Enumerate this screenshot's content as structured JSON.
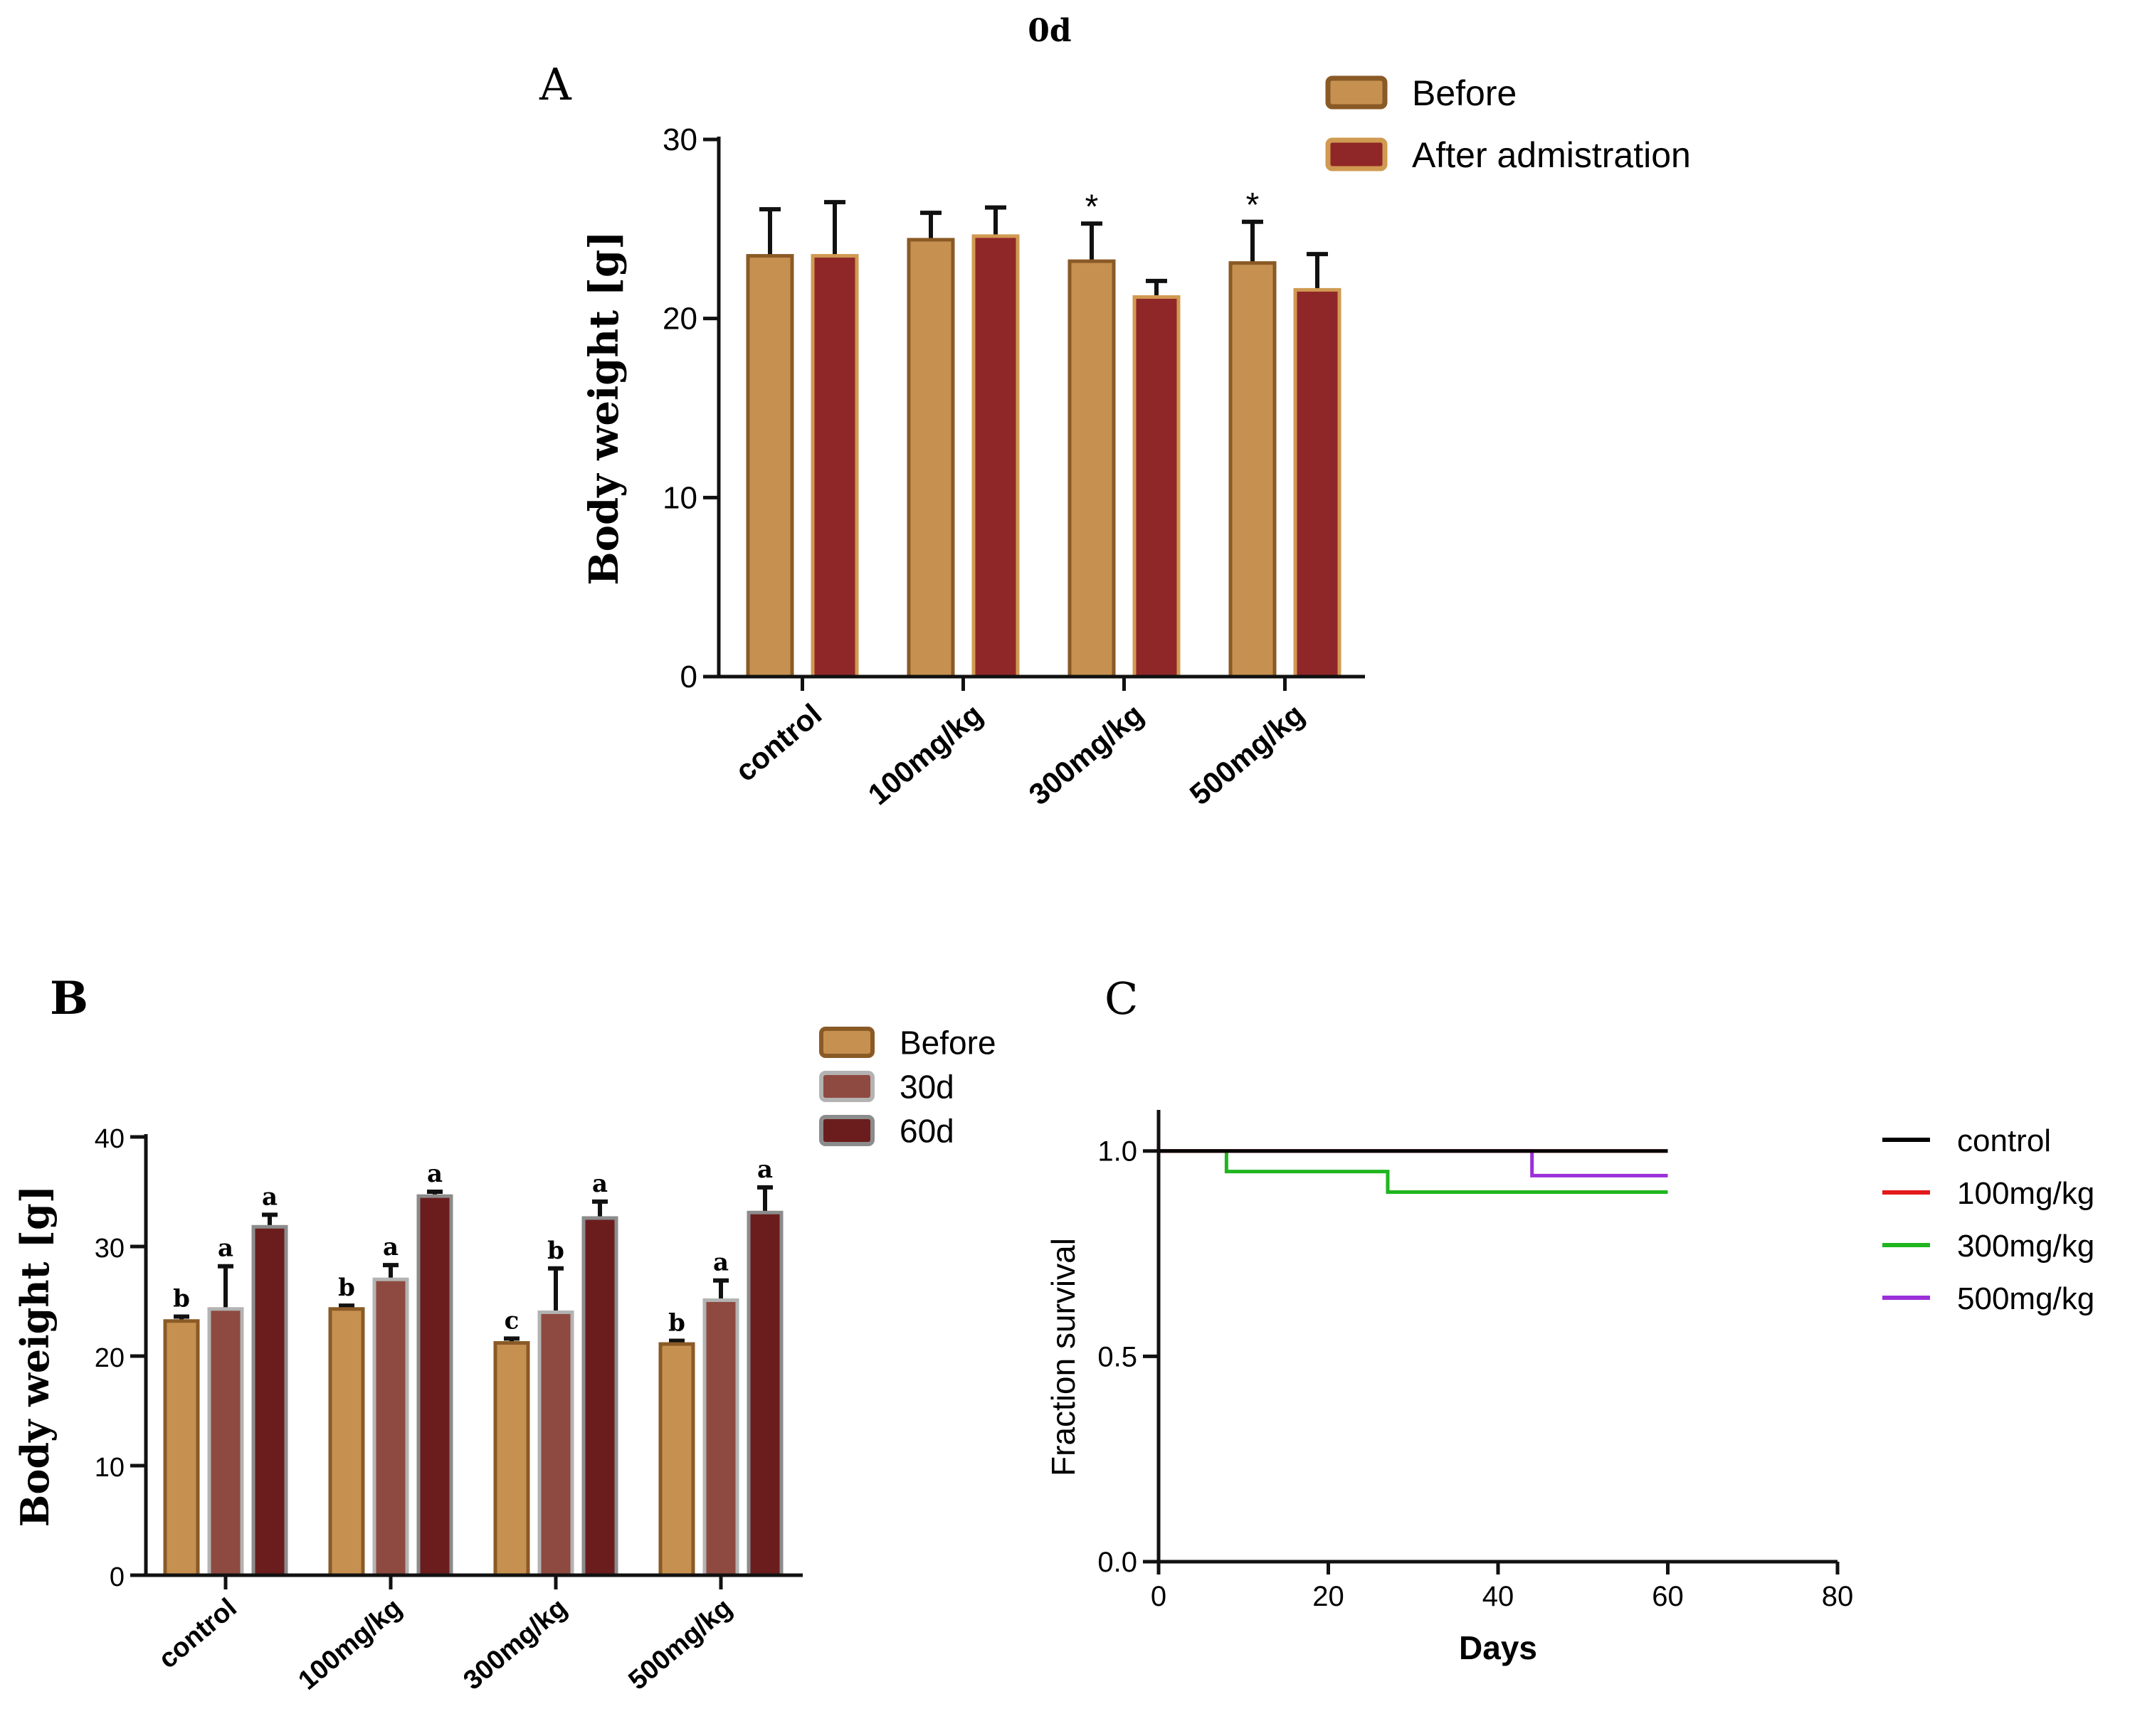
{
  "header": {
    "title": "0d"
  },
  "chart_data": [
    {
      "panel": "A",
      "type": "bar",
      "categories": [
        "control",
        "100mg/kg",
        "300mg/kg",
        "500mg/kg"
      ],
      "series": [
        {
          "name": "Before",
          "values": [
            23.5,
            24.4,
            23.2,
            23.1
          ],
          "errors": [
            2.6,
            1.5,
            2.1,
            2.3
          ],
          "fill": "#c69150",
          "stroke": "#8a5a26"
        },
        {
          "name": "After admistration",
          "values": [
            23.5,
            24.6,
            21.2,
            21.6
          ],
          "errors": [
            3.0,
            1.6,
            0.9,
            2.0
          ],
          "fill": "#8f2728",
          "stroke": "#d09a52"
        }
      ],
      "annotations": [
        {
          "category": 2,
          "series": 0,
          "text": "*"
        },
        {
          "category": 3,
          "series": 0,
          "text": "*"
        }
      ],
      "ylabel": "Body weight [g]",
      "yticks": [
        0,
        10,
        20,
        30
      ],
      "ylim": [
        0,
        30
      ],
      "legend": "top-right"
    },
    {
      "panel": "B",
      "type": "bar",
      "categories": [
        "control",
        "100mg/kg",
        "300mg/kg",
        "500mg/kg"
      ],
      "series": [
        {
          "name": "Before",
          "values": [
            23.2,
            24.3,
            21.2,
            21.1
          ],
          "errors": [
            0.4,
            0.3,
            0.4,
            0.3
          ],
          "letters": [
            "b",
            "b",
            "c",
            "b"
          ],
          "fill": "#c69150",
          "stroke": "#8a5a26"
        },
        {
          "name": "30d",
          "values": [
            24.3,
            27.0,
            24.0,
            25.1
          ],
          "errors": [
            3.9,
            1.3,
            4.0,
            1.8
          ],
          "letters": [
            "a",
            "a",
            "b",
            "a"
          ],
          "fill": "#8e4a40",
          "stroke": "#b3b3b3"
        },
        {
          "name": "60d",
          "values": [
            31.8,
            34.6,
            32.6,
            33.1
          ],
          "errors": [
            1.1,
            0.4,
            1.5,
            2.3
          ],
          "letters": [
            "a",
            "a",
            "a",
            "a"
          ],
          "fill": "#6b1d1d",
          "stroke": "#8c8c8c"
        }
      ],
      "ylabel": "Body weight [g]",
      "yticks": [
        0,
        10,
        20,
        30,
        40
      ],
      "ylim": [
        0,
        40
      ],
      "legend": "top-right"
    },
    {
      "panel": "C",
      "type": "line",
      "step": true,
      "series": [
        {
          "name": "control",
          "color": "#000000",
          "x": [
            0,
            60
          ],
          "y": [
            1.0,
            1.0
          ]
        },
        {
          "name": "100mg/kg",
          "color": "#e31a1c",
          "x": [
            0,
            60
          ],
          "y": [
            1.0,
            1.0
          ]
        },
        {
          "name": "300mg/kg",
          "color": "#1fb51f",
          "x": [
            0,
            8,
            27,
            60
          ],
          "y": [
            1.0,
            0.95,
            0.9,
            0.9
          ]
        },
        {
          "name": "500mg/kg",
          "color": "#9b30d9",
          "x": [
            0,
            44,
            60
          ],
          "y": [
            1.0,
            0.94,
            0.94
          ]
        }
      ],
      "xlabel": "Days",
      "ylabel": "Fraction survival",
      "xticks": [
        0,
        20,
        40,
        60,
        80
      ],
      "yticks": [
        0.0,
        0.5,
        1.0
      ],
      "ytick_labels": [
        "0.0",
        "0.5",
        "1.0"
      ],
      "xlim": [
        0,
        80
      ],
      "ylim": [
        0,
        1.1
      ],
      "legend": "right"
    }
  ]
}
